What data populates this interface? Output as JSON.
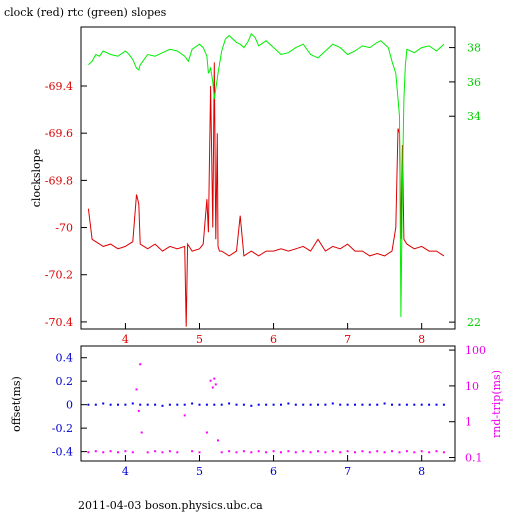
{
  "chart_data": [
    {
      "type": "line",
      "title": "clock (red) rtc (green) slopes",
      "ylabel": "clockslope",
      "xlim": [
        3.4,
        8.45
      ],
      "ylim": [
        -70.43,
        -69.15
      ],
      "y2lim": [
        21.6,
        39.2
      ],
      "x_ticks": [
        4,
        5,
        6,
        7,
        8
      ],
      "y_ticks": [
        -69.4,
        -69.6,
        -69.8,
        -70,
        -70.2,
        -70.4
      ],
      "y2_ticks": [
        38,
        36,
        34,
        22
      ],
      "colors": {
        "clock": "#dd0000",
        "rtc": "#00ee00",
        "x_ticks": "#dd0000",
        "y_ticks": "#dd0000",
        "y2_ticks": "#00cc00"
      },
      "series": [
        {
          "key": "clock",
          "axis": "left",
          "x": [
            3.5,
            3.55,
            3.6,
            3.7,
            3.8,
            3.9,
            4.0,
            4.1,
            4.15,
            4.18,
            4.2,
            4.25,
            4.3,
            4.4,
            4.5,
            4.6,
            4.7,
            4.8,
            4.82,
            4.84,
            4.9,
            5.0,
            5.05,
            5.1,
            5.12,
            5.15,
            5.18,
            5.2,
            5.22,
            5.24,
            5.25,
            5.27,
            5.3,
            5.4,
            5.5,
            5.55,
            5.6,
            5.7,
            5.8,
            5.9,
            6.0,
            6.1,
            6.2,
            6.3,
            6.4,
            6.5,
            6.6,
            6.7,
            6.8,
            6.9,
            7.0,
            7.1,
            7.2,
            7.3,
            7.4,
            7.5,
            7.6,
            7.65,
            7.68,
            7.7,
            7.72,
            7.74,
            7.76,
            7.8,
            7.9,
            8.0,
            8.1,
            8.2,
            8.3
          ],
          "y": [
            -69.92,
            -70.05,
            -70.06,
            -70.08,
            -70.07,
            -70.09,
            -70.08,
            -70.06,
            -69.86,
            -69.9,
            -70.07,
            -70.08,
            -70.09,
            -70.07,
            -70.1,
            -70.08,
            -70.09,
            -70.08,
            -70.42,
            -70.07,
            -70.1,
            -70.09,
            -70.07,
            -69.88,
            -70.02,
            -69.4,
            -70.0,
            -69.3,
            -70.05,
            -69.6,
            -70.08,
            -70.1,
            -70.1,
            -70.12,
            -70.1,
            -69.95,
            -70.12,
            -70.1,
            -70.12,
            -70.1,
            -70.1,
            -70.09,
            -70.1,
            -70.09,
            -70.08,
            -70.1,
            -70.05,
            -70.1,
            -70.08,
            -70.09,
            -70.07,
            -70.1,
            -70.1,
            -70.12,
            -70.11,
            -70.12,
            -70.1,
            -70.0,
            -69.58,
            -69.6,
            -70.05,
            -69.65,
            -70.05,
            -70.07,
            -70.09,
            -70.08,
            -70.1,
            -70.1,
            -70.12
          ]
        },
        {
          "key": "rtc",
          "axis": "right",
          "x": [
            3.5,
            3.55,
            3.6,
            3.65,
            3.7,
            3.8,
            3.9,
            4.0,
            4.05,
            4.1,
            4.15,
            4.18,
            4.2,
            4.25,
            4.3,
            4.4,
            4.5,
            4.6,
            4.7,
            4.8,
            4.85,
            4.9,
            5.0,
            5.05,
            5.1,
            5.12,
            5.15,
            5.18,
            5.2,
            5.22,
            5.25,
            5.3,
            5.35,
            5.4,
            5.5,
            5.55,
            5.6,
            5.65,
            5.7,
            5.75,
            5.8,
            5.9,
            6.0,
            6.1,
            6.2,
            6.3,
            6.4,
            6.5,
            6.6,
            6.7,
            6.8,
            6.9,
            7.0,
            7.1,
            7.2,
            7.3,
            7.4,
            7.45,
            7.5,
            7.55,
            7.6,
            7.65,
            7.7,
            7.72,
            7.74,
            7.76,
            7.78,
            7.8,
            7.9,
            8.0,
            8.1,
            8.2,
            8.3
          ],
          "y": [
            37.0,
            37.2,
            37.6,
            37.5,
            37.8,
            37.6,
            37.5,
            37.8,
            37.6,
            37.3,
            36.8,
            36.7,
            37.0,
            37.3,
            37.6,
            37.5,
            37.7,
            37.9,
            37.8,
            37.5,
            37.2,
            37.9,
            38.2,
            38.0,
            37.5,
            36.5,
            36.8,
            36.0,
            35.0,
            35.6,
            36.5,
            37.8,
            38.5,
            38.7,
            38.3,
            38.2,
            38.0,
            38.3,
            38.8,
            38.6,
            38.1,
            38.4,
            38.0,
            37.6,
            37.7,
            38.0,
            38.2,
            37.6,
            37.4,
            37.8,
            38.2,
            38.0,
            37.6,
            37.8,
            38.1,
            38.0,
            38.3,
            38.4,
            38.2,
            38.0,
            37.2,
            36.5,
            34.0,
            22.3,
            30.0,
            35.0,
            37.0,
            37.9,
            37.7,
            38.0,
            38.1,
            37.8,
            38.2
          ]
        }
      ]
    },
    {
      "type": "scatter",
      "ylabel": "offset(ms)",
      "y2label": "rnd-trip(ms)",
      "xlim": [
        3.4,
        8.45
      ],
      "ylim": [
        -0.48,
        0.5
      ],
      "y2lim_log": [
        0.08,
        130
      ],
      "x_ticks": [
        4,
        5,
        6,
        7,
        8
      ],
      "y_ticks": [
        0.4,
        0.2,
        0,
        -0.2,
        -0.4
      ],
      "y2_ticks": [
        {
          "value": 100,
          "label": "100"
        },
        {
          "value": 10,
          "label": "10"
        },
        {
          "value": 1,
          "label": "1"
        },
        {
          "value": 0.1,
          "label": "0.1"
        }
      ],
      "colors": {
        "offset": "#0000ee",
        "rtt": "#ff00ff",
        "x_ticks": "#0000cc",
        "y_ticks": "#0000cc",
        "y2_ticks": "#ee00ee"
      },
      "series": [
        {
          "key": "offset",
          "axis": "left",
          "x": [
            3.5,
            3.6,
            3.7,
            3.8,
            3.9,
            4.0,
            4.1,
            4.2,
            4.3,
            4.4,
            4.5,
            4.6,
            4.7,
            4.8,
            4.9,
            5.0,
            5.1,
            5.2,
            5.3,
            5.4,
            5.5,
            5.6,
            5.7,
            5.8,
            5.9,
            6.0,
            6.1,
            6.2,
            6.3,
            6.4,
            6.5,
            6.6,
            6.7,
            6.8,
            6.9,
            7.0,
            7.1,
            7.2,
            7.3,
            7.4,
            7.5,
            7.6,
            7.7,
            7.8,
            7.9,
            8.0,
            8.1,
            8.2,
            8.3
          ],
          "y": [
            0.0,
            0.0,
            0.01,
            0.0,
            0.0,
            0.0,
            0.01,
            0.0,
            0.0,
            0.0,
            -0.01,
            0.0,
            0.0,
            0.0,
            0.01,
            0.0,
            0.0,
            0.0,
            0.0,
            0.01,
            0.0,
            0.0,
            -0.01,
            0.0,
            0.0,
            0.0,
            0.0,
            0.01,
            0.0,
            0.0,
            0.0,
            0.0,
            0.0,
            0.01,
            0.0,
            0.0,
            0.0,
            0.0,
            0.0,
            0.0,
            0.01,
            0.0,
            0.0,
            0.0,
            0.0,
            0.0,
            0.0,
            0.0,
            0.0
          ]
        },
        {
          "key": "rtt",
          "axis": "right",
          "x": [
            3.5,
            3.6,
            3.7,
            3.8,
            3.9,
            4.0,
            4.1,
            4.15,
            4.18,
            4.2,
            4.22,
            4.3,
            4.4,
            4.5,
            4.6,
            4.7,
            4.8,
            4.9,
            5.0,
            5.1,
            5.15,
            5.18,
            5.2,
            5.22,
            5.25,
            5.3,
            5.4,
            5.5,
            5.6,
            5.7,
            5.8,
            5.9,
            6.0,
            6.1,
            6.2,
            6.3,
            6.4,
            6.5,
            6.6,
            6.7,
            6.8,
            6.9,
            7.0,
            7.1,
            7.2,
            7.3,
            7.4,
            7.5,
            7.6,
            7.7,
            7.8,
            7.9,
            8.0,
            8.1,
            8.2,
            8.3
          ],
          "y": [
            0.14,
            0.15,
            0.14,
            0.15,
            0.14,
            0.15,
            0.14,
            8.0,
            2.0,
            40.0,
            0.5,
            0.14,
            0.15,
            0.14,
            0.15,
            0.14,
            1.5,
            0.15,
            0.14,
            0.5,
            14.0,
            9.0,
            16.0,
            11.0,
            0.3,
            0.14,
            0.15,
            0.14,
            0.15,
            0.14,
            0.15,
            0.14,
            0.15,
            0.14,
            0.15,
            0.14,
            0.15,
            0.14,
            0.15,
            0.14,
            0.15,
            0.14,
            0.15,
            0.14,
            0.15,
            0.14,
            0.15,
            0.14,
            0.15,
            0.14,
            0.15,
            0.14,
            0.15,
            0.14,
            0.15,
            0.14
          ]
        }
      ]
    }
  ],
  "footer": {
    "caption": "2011-04-03  boson.physics.ubc.ca"
  }
}
